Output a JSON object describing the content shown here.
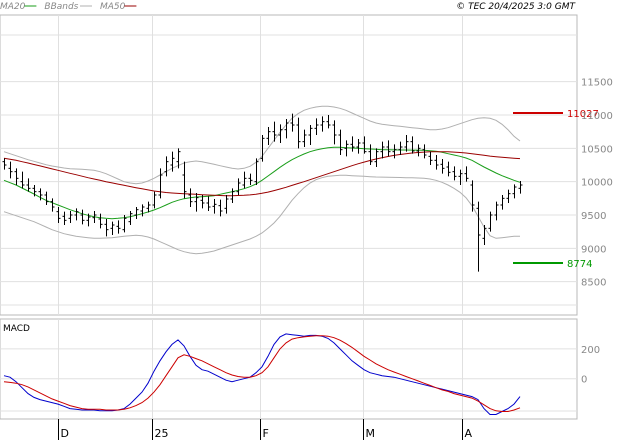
{
  "header": {
    "legend": [
      {
        "label": "MA20",
        "color": "#1a9e1a"
      },
      {
        "label": "BBands",
        "color": "#b0b0b0"
      },
      {
        "label": "MA50",
        "color": "#9a0000"
      }
    ],
    "copyright": "© TEC 20/4/2025 3:0 GMT"
  },
  "chart_data": [
    {
      "type": "line",
      "panel": "price",
      "y_axis_position": "right",
      "y_ticks": [
        11500,
        11000,
        10500,
        10000,
        9500,
        9000,
        8500
      ],
      "ylim": [
        8000,
        12500
      ],
      "grid": true,
      "x_tick_labels": [
        "D",
        "25",
        "F",
        "M",
        "A"
      ],
      "x_tick_days": [
        0,
        23,
        49,
        74,
        98
      ],
      "x_range_days": [
        -14,
        126
      ],
      "ohlc": [
        [
          10300,
          10350,
          10180,
          10250
        ],
        [
          10200,
          10300,
          10050,
          10150
        ],
        [
          10150,
          10200,
          9950,
          10050
        ],
        [
          10000,
          10150,
          9900,
          9950
        ],
        [
          9950,
          10050,
          9850,
          9900
        ],
        [
          9900,
          9950,
          9780,
          9850
        ],
        [
          9850,
          9900,
          9720,
          9800
        ],
        [
          9800,
          9850,
          9650,
          9700
        ],
        [
          9700,
          9750,
          9550,
          9620
        ],
        [
          9550,
          9620,
          9380,
          9450
        ],
        [
          9480,
          9550,
          9350,
          9420
        ],
        [
          9450,
          9560,
          9380,
          9500
        ],
        [
          9500,
          9600,
          9420,
          9550
        ],
        [
          9500,
          9580,
          9360,
          9420
        ],
        [
          9420,
          9520,
          9330,
          9470
        ],
        [
          9460,
          9560,
          9380,
          9500
        ],
        [
          9440,
          9520,
          9300,
          9360
        ],
        [
          9360,
          9440,
          9180,
          9280
        ],
        [
          9300,
          9400,
          9200,
          9350
        ],
        [
          9330,
          9420,
          9220,
          9300
        ],
        [
          9280,
          9500,
          9240,
          9450
        ],
        [
          9400,
          9560,
          9350,
          9520
        ],
        [
          9500,
          9620,
          9440,
          9580
        ],
        [
          9560,
          9660,
          9480,
          9620
        ],
        [
          9600,
          9700,
          9540,
          9650
        ],
        [
          9650,
          9850,
          9600,
          9800
        ],
        [
          9800,
          10200,
          9750,
          10100
        ],
        [
          10150,
          10380,
          10080,
          10300
        ],
        [
          10250,
          10450,
          10150,
          10350
        ],
        [
          10300,
          10500,
          10200,
          10450
        ],
        [
          10100,
          10300,
          9750,
          9850
        ],
        [
          9800,
          9900,
          9620,
          9700
        ],
        [
          9700,
          9830,
          9550,
          9760
        ],
        [
          9720,
          9800,
          9600,
          9680
        ],
        [
          9680,
          9780,
          9560,
          9620
        ],
        [
          9630,
          9740,
          9520,
          9660
        ],
        [
          9640,
          9730,
          9480,
          9560
        ],
        [
          9600,
          9800,
          9520,
          9740
        ],
        [
          9740,
          9900,
          9680,
          9850
        ],
        [
          9850,
          10050,
          9800,
          9980
        ],
        [
          9950,
          10150,
          9900,
          10050
        ],
        [
          10050,
          10120,
          9950,
          10020
        ],
        [
          10000,
          10350,
          9950,
          10300
        ],
        [
          10350,
          10700,
          10300,
          10650
        ],
        [
          10650,
          10820,
          10550,
          10750
        ],
        [
          10750,
          10900,
          10600,
          10700
        ],
        [
          10700,
          10860,
          10580,
          10780
        ],
        [
          10780,
          10940,
          10650,
          10880
        ],
        [
          10880,
          11020,
          10750,
          10850
        ],
        [
          10850,
          10960,
          10500,
          10600
        ],
        [
          10600,
          10780,
          10520,
          10700
        ],
        [
          10700,
          10850,
          10550,
          10800
        ],
        [
          10800,
          10950,
          10700,
          10850
        ],
        [
          10850,
          10980,
          10750,
          10900
        ],
        [
          10900,
          11000,
          10800,
          10850
        ],
        [
          10850,
          10920,
          10560,
          10700
        ],
        [
          10700,
          10780,
          10400,
          10480
        ],
        [
          10500,
          10620,
          10380,
          10560
        ],
        [
          10560,
          10680,
          10450,
          10520
        ],
        [
          10520,
          10640,
          10420,
          10580
        ],
        [
          10580,
          10680,
          10420,
          10450
        ],
        [
          10450,
          10560,
          10250,
          10300
        ],
        [
          10300,
          10500,
          10220,
          10450
        ],
        [
          10450,
          10600,
          10350,
          10520
        ],
        [
          10520,
          10620,
          10380,
          10450
        ],
        [
          10450,
          10560,
          10350,
          10480
        ],
        [
          10480,
          10600,
          10400,
          10520
        ],
        [
          10520,
          10700,
          10450,
          10600
        ],
        [
          10600,
          10680,
          10420,
          10460
        ],
        [
          10460,
          10560,
          10380,
          10500
        ],
        [
          10480,
          10560,
          10350,
          10400
        ],
        [
          10380,
          10450,
          10250,
          10320
        ],
        [
          10320,
          10400,
          10180,
          10250
        ],
        [
          10260,
          10340,
          10120,
          10200
        ],
        [
          10220,
          10300,
          10080,
          10140
        ],
        [
          10150,
          10230,
          10020,
          10080
        ],
        [
          10080,
          10180,
          9950,
          10120
        ],
        [
          10120,
          10230,
          10000,
          10050
        ],
        [
          9950,
          10020,
          9550,
          9650
        ],
        [
          9600,
          9700,
          8650,
          9200
        ],
        [
          9150,
          9350,
          9050,
          9300
        ],
        [
          9300,
          9550,
          9250,
          9500
        ],
        [
          9500,
          9700,
          9420,
          9650
        ],
        [
          9650,
          9800,
          9580,
          9750
        ],
        [
          9750,
          9880,
          9680,
          9820
        ],
        [
          9820,
          9960,
          9750,
          9920
        ],
        [
          9900,
          10010,
          9820,
          9950
        ]
      ],
      "series": [
        {
          "name": "MA20",
          "color": "#1a9e1a",
          "start_bar": 0,
          "values": [
            10020,
            9985,
            9950,
            9905,
            9860,
            9815,
            9765,
            9720,
            9685,
            9650,
            9615,
            9580,
            9550,
            9520,
            9495,
            9475,
            9460,
            9450,
            9445,
            9450,
            9460,
            9475,
            9495,
            9520,
            9545,
            9575,
            9610,
            9650,
            9690,
            9720,
            9745,
            9760,
            9770,
            9775,
            9780,
            9790,
            9810,
            9830,
            9850,
            9870,
            9895,
            9925,
            9965,
            10020,
            10085,
            10150,
            10215,
            10275,
            10330,
            10375,
            10415,
            10450,
            10475,
            10495,
            10510,
            10515,
            10515,
            10510,
            10505,
            10500,
            10495,
            10490,
            10485,
            10480,
            10478,
            10476,
            10475,
            10475,
            10474,
            10473,
            10470,
            10465,
            10455,
            10440,
            10420,
            10400,
            10380,
            10355,
            10320,
            10270,
            10220,
            10175,
            10130,
            10090,
            10055,
            10020,
            9990
          ]
        },
        {
          "name": "MA50",
          "color": "#9a0000",
          "start_bar": 0,
          "values": [
            10350,
            10335,
            10320,
            10300,
            10280,
            10258,
            10236,
            10214,
            10192,
            10170,
            10148,
            10126,
            10104,
            10082,
            10060,
            10040,
            10020,
            10000,
            9982,
            9964,
            9946,
            9928,
            9910,
            9893,
            9876,
            9860,
            9848,
            9838,
            9830,
            9824,
            9820,
            9815,
            9810,
            9805,
            9800,
            9795,
            9792,
            9790,
            9790,
            9792,
            9796,
            9802,
            9812,
            9826,
            9844,
            9866,
            9890,
            9916,
            9944,
            9972,
            10000,
            10030,
            10060,
            10090,
            10120,
            10150,
            10180,
            10210,
            10240,
            10268,
            10294,
            10318,
            10340,
            10360,
            10378,
            10394,
            10408,
            10420,
            10430,
            10438,
            10444,
            10448,
            10450,
            10450,
            10448,
            10444,
            10438,
            10430,
            10420,
            10408,
            10396,
            10384,
            10374,
            10366,
            10358,
            10352,
            10346
          ]
        },
        {
          "name": "BBands upper",
          "color": "#b0b0b0",
          "start_bar": 0,
          "values": [
            10450,
            10420,
            10390,
            10360,
            10330,
            10305,
            10280,
            10255,
            10235,
            10220,
            10205,
            10195,
            10190,
            10185,
            10180,
            10170,
            10150,
            10120,
            10080,
            10040,
            10000,
            9980,
            9970,
            9980,
            10010,
            10050,
            10100,
            10150,
            10200,
            10240,
            10280,
            10300,
            10310,
            10300,
            10280,
            10260,
            10240,
            10220,
            10200,
            10190,
            10200,
            10230,
            10290,
            10380,
            10500,
            10620,
            10740,
            10850,
            10950,
            11020,
            11070,
            11100,
            11120,
            11130,
            11130,
            11120,
            11100,
            11070,
            11030,
            10990,
            10950,
            10910,
            10880,
            10860,
            10850,
            10840,
            10830,
            10820,
            10810,
            10800,
            10790,
            10780,
            10780,
            10790,
            10810,
            10840,
            10870,
            10900,
            10930,
            10950,
            10960,
            10950,
            10920,
            10860,
            10780,
            10680,
            10610
          ]
        },
        {
          "name": "BBands lower",
          "color": "#b0b0b0",
          "start_bar": 0,
          "values": [
            9550,
            9520,
            9490,
            9460,
            9430,
            9400,
            9360,
            9320,
            9280,
            9250,
            9220,
            9200,
            9180,
            9170,
            9160,
            9150,
            9150,
            9155,
            9160,
            9170,
            9180,
            9190,
            9195,
            9190,
            9170,
            9140,
            9100,
            9060,
            9020,
            8980,
            8950,
            8930,
            8920,
            8925,
            8940,
            8960,
            8990,
            9020,
            9050,
            9080,
            9110,
            9140,
            9180,
            9230,
            9300,
            9380,
            9480,
            9600,
            9720,
            9820,
            9910,
            9980,
            10030,
            10060,
            10080,
            10090,
            10095,
            10095,
            10090,
            10085,
            10080,
            10075,
            10070,
            10068,
            10066,
            10064,
            10062,
            10060,
            10058,
            10055,
            10050,
            10040,
            10020,
            9990,
            9950,
            9900,
            9840,
            9760,
            9640,
            9480,
            9320,
            9190,
            9150,
            9160,
            9170,
            9180,
            9180
          ]
        }
      ],
      "annotations": [
        {
          "label": "11027",
          "value": 11027,
          "color": "#cc0000"
        },
        {
          "label": "8774",
          "value": 8774,
          "color": "#009900"
        }
      ]
    },
    {
      "type": "line",
      "panel": "macd",
      "title": "MACD",
      "y_axis_position": "right",
      "y_ticks": [
        200,
        0
      ],
      "ylim": [
        -270,
        400
      ],
      "grid": true,
      "series": [
        {
          "name": "MACD",
          "color": "#0000cc",
          "start_bar": 0,
          "values": [
            20,
            10,
            -20,
            -60,
            -100,
            -125,
            -140,
            -150,
            -160,
            -170,
            -185,
            -200,
            -205,
            -210,
            -210,
            -210,
            -215,
            -215,
            -215,
            -210,
            -200,
            -170,
            -130,
            -90,
            -30,
            50,
            120,
            180,
            230,
            260,
            220,
            150,
            90,
            60,
            50,
            30,
            10,
            -10,
            -20,
            -10,
            0,
            10,
            40,
            80,
            150,
            230,
            280,
            300,
            295,
            290,
            285,
            290,
            290,
            285,
            270,
            240,
            200,
            160,
            120,
            90,
            60,
            40,
            30,
            20,
            15,
            10,
            0,
            -10,
            -20,
            -30,
            -40,
            -50,
            -60,
            -70,
            -80,
            -90,
            -100,
            -110,
            -120,
            -140,
            -200,
            -240,
            -240,
            -220,
            -200,
            -170,
            -120
          ]
        },
        {
          "name": "Signal",
          "color": "#cc0000",
          "start_bar": 0,
          "values": [
            -20,
            -25,
            -30,
            -40,
            -55,
            -75,
            -95,
            -115,
            -135,
            -150,
            -165,
            -180,
            -190,
            -200,
            -205,
            -205,
            -205,
            -210,
            -210,
            -210,
            -205,
            -195,
            -180,
            -160,
            -130,
            -90,
            -40,
            20,
            80,
            140,
            160,
            150,
            135,
            120,
            100,
            80,
            60,
            40,
            25,
            15,
            10,
            10,
            20,
            40,
            80,
            140,
            200,
            240,
            265,
            275,
            280,
            285,
            288,
            288,
            285,
            275,
            258,
            235,
            210,
            180,
            150,
            125,
            100,
            80,
            60,
            45,
            30,
            15,
            0,
            -15,
            -30,
            -45,
            -60,
            -75,
            -85,
            -100,
            -110,
            -120,
            -130,
            -150,
            -175,
            -200,
            -215,
            -220,
            -220,
            -210,
            -195
          ]
        }
      ]
    }
  ]
}
